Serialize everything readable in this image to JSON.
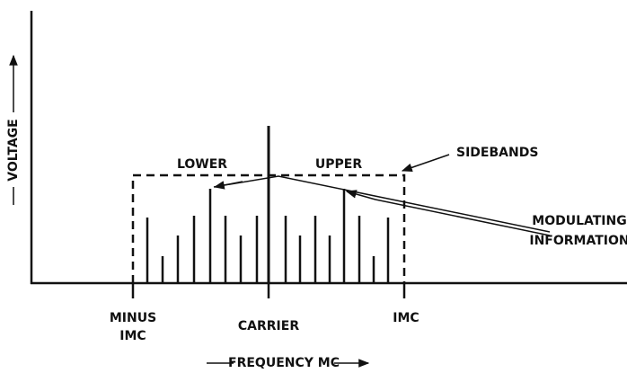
{
  "labels": {
    "lower": "LOWER",
    "upper": "UPPER",
    "sidebands": "SIDEBANDS",
    "modulating": [
      "MODULATING",
      "INFORMATION"
    ],
    "y_axis": "VOLTAGE",
    "x_axis": "FREQUENCY MC",
    "minus": [
      "MINUS",
      "IMC"
    ],
    "carrier": "CARRIER",
    "plus": "IMC"
  }
}
